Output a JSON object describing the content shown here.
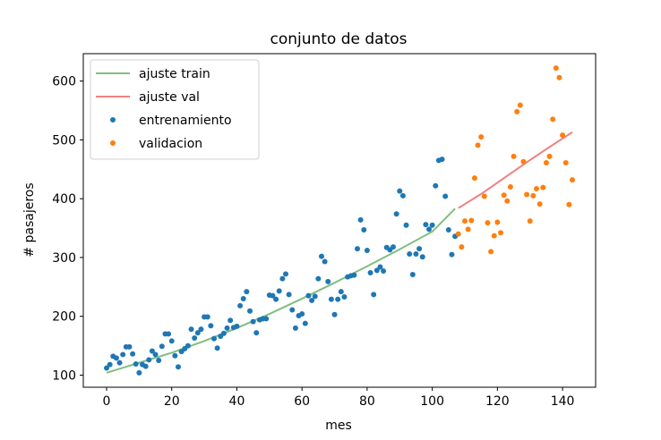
{
  "chart_data": {
    "type": "scatter",
    "title": "conjunto de datos",
    "xlabel": "mes",
    "ylabel": "# pasajeros",
    "xlim": [
      -7.15,
      150.15
    ],
    "ylim": [
      79.4,
      646.6
    ],
    "xticks": [
      0,
      20,
      40,
      60,
      80,
      100,
      120,
      140
    ],
    "yticks": [
      100,
      200,
      300,
      400,
      500,
      600
    ],
    "grid": false,
    "legend_position": "top-left",
    "legend": [
      "ajuste train",
      "ajuste val",
      "entrenamiento",
      "validacion"
    ],
    "series": [
      {
        "name": "ajuste train",
        "kind": "line",
        "color": "#7fbf7f",
        "x": [
          0,
          10,
          20,
          30,
          40,
          50,
          60,
          70,
          80,
          90,
          100,
          107
        ],
        "y": [
          104,
          121,
          138,
          158,
          180,
          204,
          230,
          257,
          285,
          314,
          344,
          383
        ]
      },
      {
        "name": "ajuste val",
        "kind": "line",
        "color": "#f08080",
        "x": [
          108,
          115,
          122,
          129,
          136,
          143
        ],
        "y": [
          384,
          408,
          435,
          462,
          488,
          513
        ]
      },
      {
        "name": "entrenamiento",
        "kind": "scatter",
        "color": "#1f77b4",
        "x": [
          0,
          1,
          2,
          3,
          4,
          5,
          6,
          7,
          8,
          9,
          10,
          11,
          12,
          13,
          14,
          15,
          16,
          17,
          18,
          19,
          20,
          21,
          22,
          23,
          24,
          25,
          26,
          27,
          28,
          29,
          30,
          31,
          32,
          33,
          34,
          35,
          36,
          37,
          38,
          39,
          40,
          41,
          42,
          43,
          44,
          45,
          46,
          47,
          48,
          49,
          50,
          51,
          52,
          53,
          54,
          55,
          56,
          57,
          58,
          59,
          60,
          61,
          62,
          63,
          64,
          65,
          66,
          67,
          68,
          69,
          70,
          71,
          72,
          73,
          74,
          75,
          76,
          77,
          78,
          79,
          80,
          81,
          82,
          83,
          84,
          85,
          86,
          87,
          88,
          89,
          90,
          91,
          92,
          93,
          94,
          95,
          96,
          97,
          98,
          99,
          100,
          101,
          102,
          103,
          104,
          105,
          106,
          107
        ],
        "y": [
          112,
          118,
          132,
          129,
          121,
          135,
          148,
          148,
          136,
          119,
          104,
          118,
          115,
          126,
          141,
          135,
          125,
          149,
          170,
          170,
          158,
          133,
          114,
          140,
          145,
          150,
          178,
          163,
          172,
          178,
          199,
          199,
          184,
          162,
          146,
          166,
          171,
          180,
          193,
          181,
          183,
          218,
          230,
          242,
          209,
          191,
          172,
          194,
          196,
          196,
          236,
          235,
          229,
          243,
          264,
          272,
          237,
          211,
          180,
          201,
          204,
          188,
          235,
          227,
          234,
          264,
          302,
          293,
          259,
          229,
          203,
          229,
          242,
          233,
          267,
          269,
          270,
          315,
          364,
          347,
          312,
          274,
          237,
          278,
          284,
          277,
          317,
          313,
          318,
          374,
          413,
          405,
          355,
          306,
          271,
          306,
          315,
          301,
          356,
          348,
          355,
          422,
          465,
          467,
          404,
          347,
          305,
          336
        ]
      },
      {
        "name": "validacion",
        "kind": "scatter",
        "color": "#ff7f0e",
        "x": [
          108,
          109,
          110,
          111,
          112,
          113,
          114,
          115,
          116,
          117,
          118,
          119,
          120,
          121,
          122,
          123,
          124,
          125,
          126,
          127,
          128,
          129,
          130,
          131,
          132,
          133,
          134,
          135,
          136,
          137,
          138,
          139,
          140,
          141,
          142,
          143
        ],
        "y": [
          340,
          318,
          362,
          348,
          363,
          435,
          491,
          505,
          404,
          359,
          310,
          337,
          360,
          342,
          406,
          396,
          420,
          472,
          548,
          559,
          463,
          407,
          362,
          405,
          417,
          391,
          419,
          461,
          472,
          535,
          622,
          606,
          508,
          461,
          390,
          432
        ]
      }
    ]
  }
}
